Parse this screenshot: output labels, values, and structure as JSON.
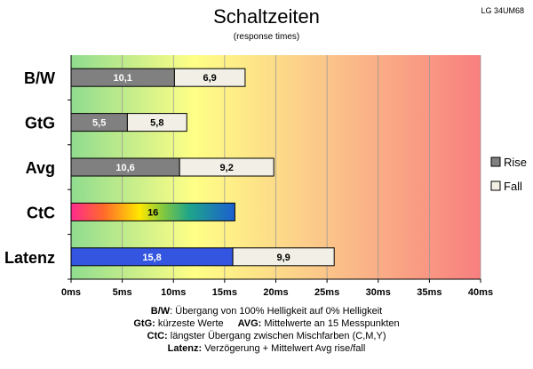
{
  "chart_data": {
    "type": "bar",
    "orientation": "horizontal",
    "stacked": true,
    "title": "Schaltzeiten",
    "subtitle": "(response times)",
    "model": "LG 34UM68",
    "categories": [
      "B/W",
      "GtG",
      "Avg",
      "CtC",
      "Latenz"
    ],
    "series": [
      {
        "name": "Rise",
        "values": [
          10.1,
          5.5,
          10.6,
          16,
          15.8
        ],
        "color": "#808080"
      },
      {
        "name": "Fall",
        "values": [
          6.9,
          5.8,
          9.2,
          null,
          9.9
        ],
        "color": "#f2f0e6"
      }
    ],
    "labels": {
      "rise": [
        "10,1",
        "5,5",
        "10,6",
        "16",
        "15,8"
      ],
      "fall": [
        "6,9",
        "5,8",
        "9,2",
        "",
        "9,9"
      ]
    },
    "special_colors": {
      "CtC": "rainbow",
      "Latenz": "#3355e0"
    },
    "xlim": [
      0,
      40
    ],
    "x_ticks": [
      "0ms",
      "5ms",
      "10ms",
      "15ms",
      "20ms",
      "25ms",
      "30ms",
      "35ms",
      "40ms"
    ],
    "background": "green-yellow-red gradient",
    "grid": true,
    "legend_position": "right"
  },
  "notes": {
    "line1": {
      "key": "B/W",
      "text": ":  Übergang von 100% Helligkeit auf 0% Helligkeit"
    },
    "line2": {
      "key": "GtG:",
      "text": " kürzeste  Werte",
      "key2": "AVG:",
      "text2": " Mittelwerte  an 15 Messpunkten"
    },
    "line3": {
      "key": "CtC:",
      "text": " längster Übergang  zwischen Mischfarben (C,M,Y)"
    },
    "line4": {
      "key": "Latenz:",
      "text": " Verzögerung  + Mittelwert  Avg rise/fall"
    }
  }
}
